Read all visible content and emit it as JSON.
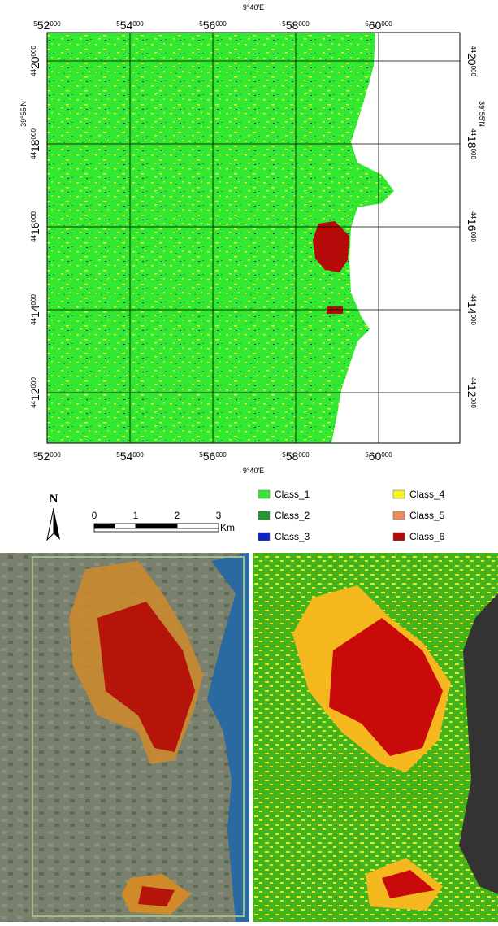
{
  "map": {
    "x_labels": [
      {
        "prefix": "5",
        "main": "52",
        "suffix": "000"
      },
      {
        "prefix": "5",
        "main": "54",
        "suffix": "000"
      },
      {
        "prefix": "5",
        "main": "56",
        "suffix": "000"
      },
      {
        "prefix": "5",
        "main": "58",
        "suffix": "000"
      },
      {
        "prefix": "5",
        "main": "60",
        "suffix": "000"
      }
    ],
    "y_labels": [
      {
        "prefix": "44",
        "main": "20",
        "suffix": "000"
      },
      {
        "prefix": "44",
        "main": "18",
        "suffix": "000"
      },
      {
        "prefix": "44",
        "main": "16",
        "suffix": "000"
      },
      {
        "prefix": "44",
        "main": "14",
        "suffix": "000"
      },
      {
        "prefix": "44",
        "main": "12",
        "suffix": "000"
      }
    ],
    "lon_label": "9°40'E",
    "lat_label": "39°55'N"
  },
  "north": "N",
  "scale": {
    "ticks": [
      "0",
      "1",
      "2",
      "3"
    ],
    "unit": "Km"
  },
  "legend": [
    {
      "name": "Class_1",
      "color": "#33e833"
    },
    {
      "name": "Class_2",
      "color": "#1f9a2a"
    },
    {
      "name": "Class_3",
      "color": "#0a22c8"
    },
    {
      "name": "Class_4",
      "color": "#f5f51e"
    },
    {
      "name": "Class_5",
      "color": "#f08a5a"
    },
    {
      "name": "Class_6",
      "color": "#b40a0a"
    }
  ]
}
